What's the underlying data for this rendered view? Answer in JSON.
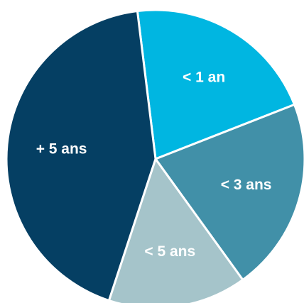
{
  "chart_data": {
    "type": "pie",
    "title": "",
    "start_angle_deg": -7,
    "slices": [
      {
        "label": "< 1 an",
        "value": 21,
        "color": "#00B6E1"
      },
      {
        "label": "< 3 ans",
        "value": 21,
        "color": "#4190A8"
      },
      {
        "label": "< 5 ans",
        "value": 15,
        "color": "#A5C4CA"
      },
      {
        "label": "+ 5 ans",
        "value": 43,
        "color": "#053F63"
      }
    ]
  }
}
